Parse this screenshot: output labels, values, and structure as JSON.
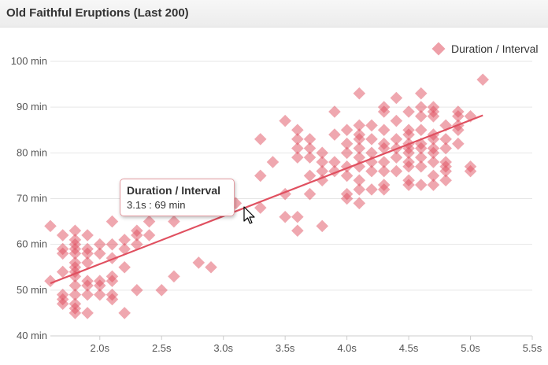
{
  "panel": {
    "title": "Old Faithful Eruptions (Last 200)"
  },
  "colors": {
    "marker": "#e05060",
    "trend": "#e05060",
    "grid": "#e6e6e6"
  },
  "tooltip": {
    "title": "Duration / Interval",
    "value": "3.1s : 69 min"
  },
  "chart_data": {
    "type": "scatter",
    "title": "Old Faithful Eruptions (Last 200)",
    "xlabel": "",
    "ylabel": "",
    "xlim": [
      1.6,
      5.5
    ],
    "ylim": [
      40,
      100
    ],
    "x_ticks": [
      2.0,
      2.5,
      3.0,
      3.5,
      4.0,
      4.5,
      5.0,
      5.5
    ],
    "x_tick_labels": [
      "2.0s",
      "2.5s",
      "3.0s",
      "3.5s",
      "4.0s",
      "4.5s",
      "5.0s",
      "5.5s"
    ],
    "y_ticks": [
      40,
      50,
      60,
      70,
      80,
      90,
      100
    ],
    "y_tick_labels": [
      "40 min",
      "50 min",
      "60 min",
      "70 min",
      "80 min",
      "90 min",
      "100 min"
    ],
    "grid": "horizontal",
    "legend_position": "top-right",
    "marker": "diamond",
    "series": [
      {
        "name": "Duration / Interval",
        "points": [
          [
            1.6,
            52
          ],
          [
            1.6,
            64
          ],
          [
            1.7,
            47
          ],
          [
            1.7,
            48
          ],
          [
            1.7,
            49
          ],
          [
            1.7,
            54
          ],
          [
            1.7,
            58
          ],
          [
            1.7,
            59
          ],
          [
            1.7,
            62
          ],
          [
            1.8,
            45
          ],
          [
            1.8,
            46
          ],
          [
            1.8,
            47
          ],
          [
            1.8,
            49
          ],
          [
            1.8,
            51
          ],
          [
            1.8,
            53
          ],
          [
            1.8,
            54
          ],
          [
            1.8,
            55
          ],
          [
            1.8,
            56
          ],
          [
            1.8,
            58
          ],
          [
            1.8,
            59
          ],
          [
            1.8,
            60
          ],
          [
            1.8,
            61
          ],
          [
            1.8,
            63
          ],
          [
            1.9,
            45
          ],
          [
            1.9,
            49
          ],
          [
            1.9,
            51
          ],
          [
            1.9,
            52
          ],
          [
            1.9,
            56
          ],
          [
            1.9,
            58
          ],
          [
            1.9,
            59
          ],
          [
            1.9,
            62
          ],
          [
            2.0,
            49
          ],
          [
            2.0,
            51
          ],
          [
            2.0,
            52
          ],
          [
            2.0,
            58
          ],
          [
            2.0,
            60
          ],
          [
            2.1,
            48
          ],
          [
            2.1,
            49
          ],
          [
            2.1,
            52
          ],
          [
            2.1,
            53
          ],
          [
            2.1,
            57
          ],
          [
            2.1,
            60
          ],
          [
            2.1,
            65
          ],
          [
            2.2,
            45
          ],
          [
            2.2,
            55
          ],
          [
            2.2,
            59
          ],
          [
            2.2,
            61
          ],
          [
            2.3,
            50
          ],
          [
            2.3,
            60
          ],
          [
            2.3,
            62
          ],
          [
            2.3,
            63
          ],
          [
            2.4,
            62
          ],
          [
            2.4,
            65
          ],
          [
            2.5,
            50
          ],
          [
            2.6,
            53
          ],
          [
            2.6,
            65
          ],
          [
            2.8,
            56
          ],
          [
            2.9,
            55
          ],
          [
            3.1,
            69
          ],
          [
            3.3,
            68
          ],
          [
            3.3,
            75
          ],
          [
            3.3,
            83
          ],
          [
            3.4,
            78
          ],
          [
            3.5,
            66
          ],
          [
            3.5,
            71
          ],
          [
            3.5,
            87
          ],
          [
            3.6,
            63
          ],
          [
            3.6,
            66
          ],
          [
            3.6,
            79
          ],
          [
            3.6,
            81
          ],
          [
            3.6,
            83
          ],
          [
            3.6,
            85
          ],
          [
            3.7,
            71
          ],
          [
            3.7,
            75
          ],
          [
            3.7,
            79
          ],
          [
            3.7,
            81
          ],
          [
            3.7,
            83
          ],
          [
            3.8,
            64
          ],
          [
            3.8,
            74
          ],
          [
            3.8,
            76
          ],
          [
            3.8,
            78
          ],
          [
            3.8,
            80
          ],
          [
            3.9,
            76
          ],
          [
            3.9,
            78
          ],
          [
            3.9,
            84
          ],
          [
            3.9,
            89
          ],
          [
            4.0,
            70
          ],
          [
            4.0,
            71
          ],
          [
            4.0,
            75
          ],
          [
            4.0,
            77
          ],
          [
            4.0,
            80
          ],
          [
            4.0,
            82
          ],
          [
            4.0,
            85
          ],
          [
            4.1,
            69
          ],
          [
            4.1,
            72
          ],
          [
            4.1,
            74
          ],
          [
            4.1,
            77
          ],
          [
            4.1,
            79
          ],
          [
            4.1,
            81
          ],
          [
            4.1,
            83
          ],
          [
            4.1,
            84
          ],
          [
            4.1,
            86
          ],
          [
            4.1,
            93
          ],
          [
            4.2,
            72
          ],
          [
            4.2,
            76
          ],
          [
            4.2,
            78
          ],
          [
            4.2,
            80
          ],
          [
            4.2,
            83
          ],
          [
            4.2,
            86
          ],
          [
            4.3,
            72
          ],
          [
            4.3,
            73
          ],
          [
            4.3,
            76
          ],
          [
            4.3,
            78
          ],
          [
            4.3,
            81
          ],
          [
            4.3,
            82
          ],
          [
            4.3,
            85
          ],
          [
            4.3,
            89
          ],
          [
            4.3,
            90
          ],
          [
            4.4,
            76
          ],
          [
            4.4,
            79
          ],
          [
            4.4,
            81
          ],
          [
            4.4,
            83
          ],
          [
            4.4,
            87
          ],
          [
            4.4,
            92
          ],
          [
            4.5,
            73
          ],
          [
            4.5,
            74
          ],
          [
            4.5,
            77
          ],
          [
            4.5,
            78
          ],
          [
            4.5,
            80
          ],
          [
            4.5,
            81
          ],
          [
            4.5,
            82
          ],
          [
            4.5,
            84
          ],
          [
            4.5,
            85
          ],
          [
            4.5,
            89
          ],
          [
            4.6,
            73
          ],
          [
            4.6,
            77
          ],
          [
            4.6,
            79
          ],
          [
            4.6,
            81
          ],
          [
            4.6,
            82
          ],
          [
            4.6,
            85
          ],
          [
            4.6,
            88
          ],
          [
            4.6,
            90
          ],
          [
            4.6,
            93
          ],
          [
            4.7,
            73
          ],
          [
            4.7,
            75
          ],
          [
            4.7,
            78
          ],
          [
            4.7,
            80
          ],
          [
            4.7,
            81
          ],
          [
            4.7,
            83
          ],
          [
            4.7,
            84
          ],
          [
            4.7,
            88
          ],
          [
            4.7,
            89
          ],
          [
            4.7,
            90
          ],
          [
            4.8,
            74
          ],
          [
            4.8,
            76
          ],
          [
            4.8,
            77
          ],
          [
            4.8,
            78
          ],
          [
            4.8,
            81
          ],
          [
            4.8,
            83
          ],
          [
            4.8,
            86
          ],
          [
            4.9,
            82
          ],
          [
            4.9,
            85
          ],
          [
            4.9,
            86
          ],
          [
            4.9,
            88
          ],
          [
            4.9,
            89
          ],
          [
            5.0,
            76
          ],
          [
            5.0,
            77
          ],
          [
            5.0,
            88
          ],
          [
            5.1,
            96
          ]
        ]
      }
    ],
    "trendline": {
      "x": [
        1.6,
        5.1
      ],
      "y": [
        51.5,
        88.2
      ]
    }
  }
}
